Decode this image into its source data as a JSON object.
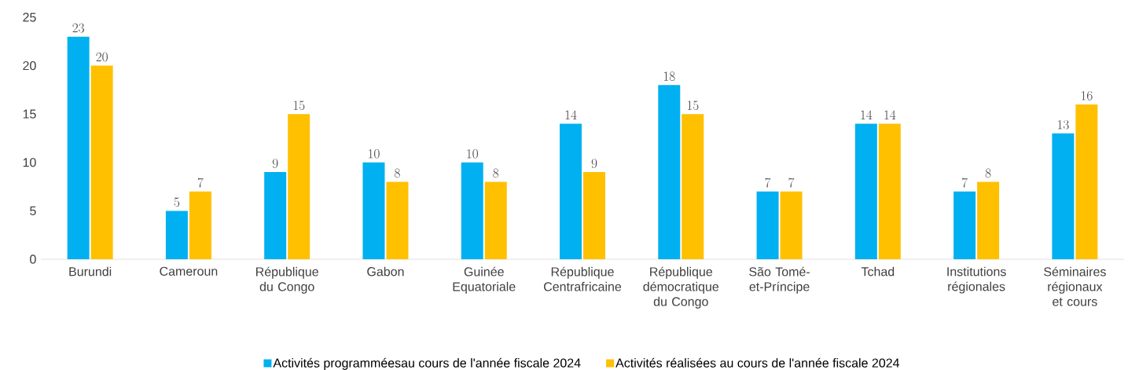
{
  "chart_data": {
    "type": "bar",
    "categories": [
      "Burundi",
      "Cameroun",
      "République du Congo",
      "Gabon",
      "Guinée Equatoriale",
      "République Centrafricaine",
      "République démocratique du Congo",
      "São Tomé-et-Príncipe",
      "Tchad",
      "Institutions régionales",
      "Séminaires régionaux et cours"
    ],
    "series": [
      {
        "name": "Activités programméesau cours de l'année fiscale 2024",
        "color": "#00b0f0",
        "values": [
          23,
          5,
          9,
          10,
          10,
          14,
          18,
          7,
          14,
          7,
          13
        ]
      },
      {
        "name": "Activités réalisées au cours de l'année fiscale 2024",
        "color": "#ffc000",
        "values": [
          20,
          7,
          15,
          8,
          8,
          9,
          15,
          7,
          14,
          8,
          16
        ]
      }
    ],
    "ylim": [
      0,
      25
    ],
    "yticks": [
      0,
      5,
      10,
      15,
      20,
      25
    ],
    "data_labels": true,
    "legend": "bottom",
    "grid": false
  }
}
